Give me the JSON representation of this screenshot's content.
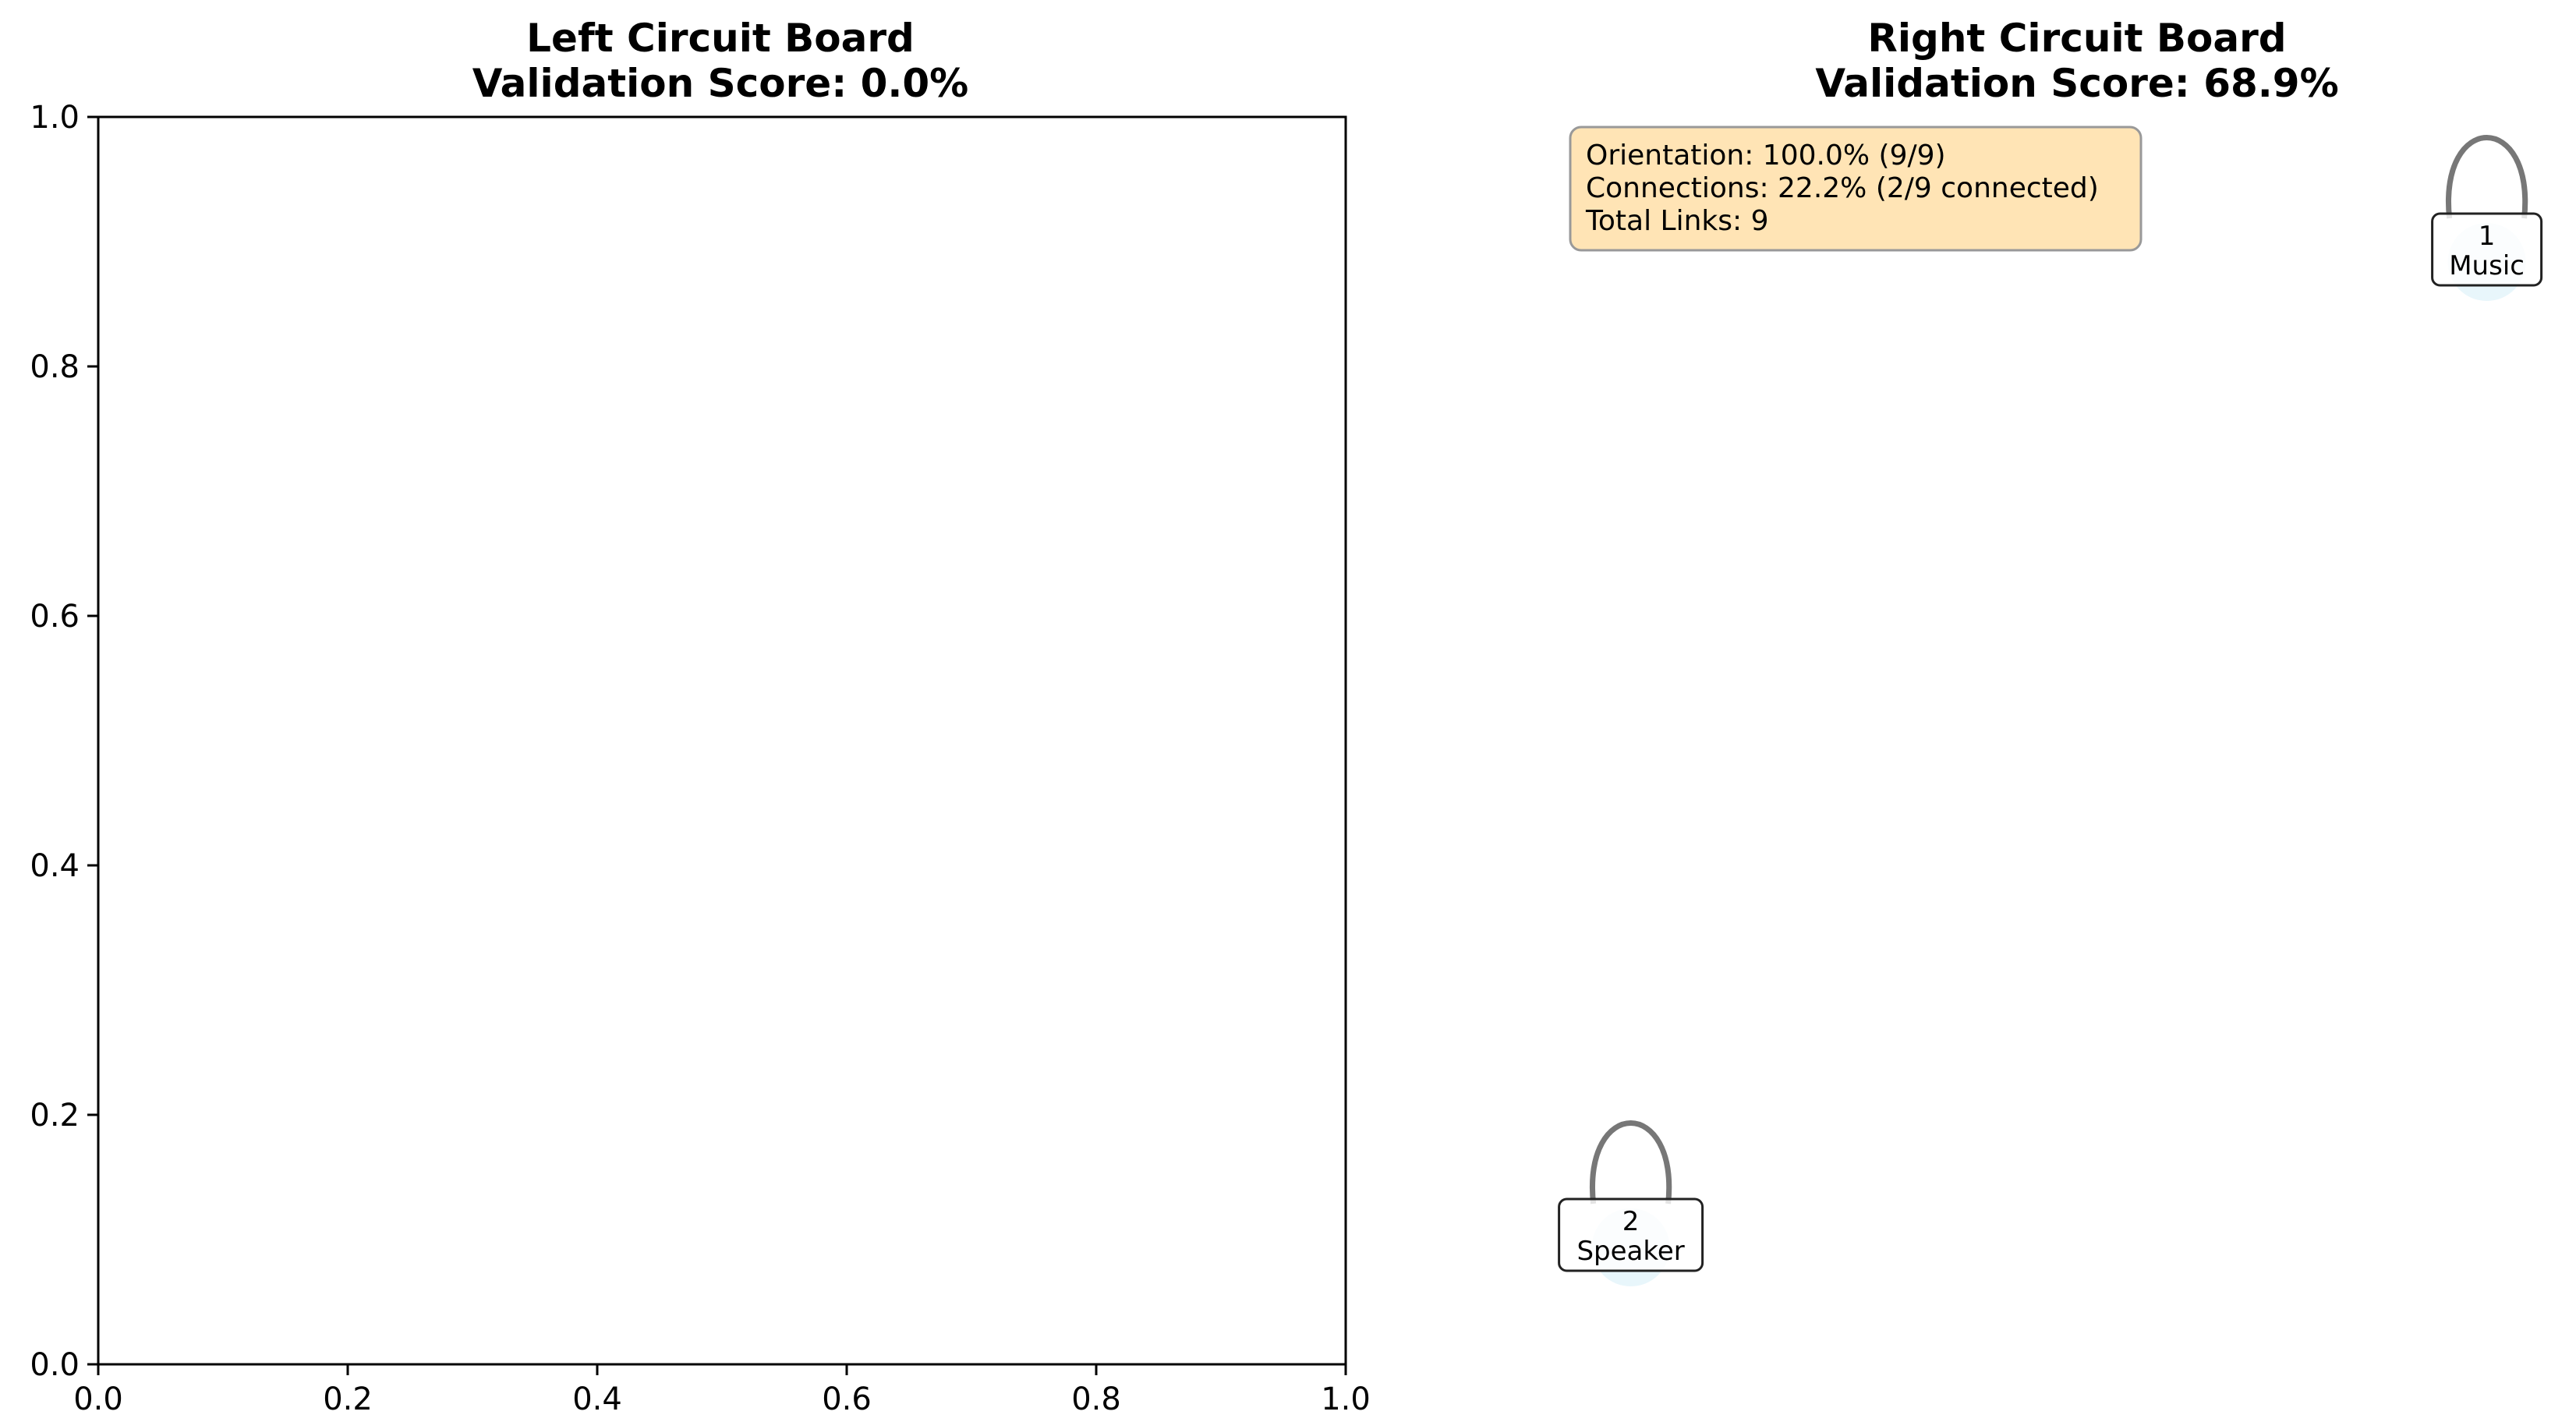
{
  "chart_data": [
    {
      "type": "scatter",
      "title_line1": "Left Circuit Board",
      "title_line2": "Validation Score: 0.0%",
      "xlim": [
        0.0,
        1.0
      ],
      "ylim": [
        0.0,
        1.0
      ],
      "x_ticks": [
        "0.0",
        "0.2",
        "0.4",
        "0.6",
        "0.8",
        "1.0"
      ],
      "y_ticks": [
        "0.0",
        "0.2",
        "0.4",
        "0.6",
        "0.8",
        "1.0"
      ],
      "axes_visible": true,
      "nodes": []
    },
    {
      "type": "scatter",
      "title_line1": "Right Circuit Board",
      "title_line2": "Validation Score: 68.9%",
      "xlim": [
        0.0,
        1.0
      ],
      "ylim": [
        0.0,
        1.0
      ],
      "axes_visible": false,
      "info_box": {
        "lines": [
          "Orientation: 100.0% (9/9)",
          "Connections: 22.2% (2/9 connected)",
          "Total Links: 9"
        ],
        "placement": "top-left",
        "background": "#ffe4b5",
        "border": "#999999"
      },
      "nodes": [
        {
          "id": "1",
          "label": "Music",
          "x": 0.98,
          "y": 0.88
        },
        {
          "id": "2",
          "label": "Speaker",
          "x": 0.08,
          "y": 0.09
        }
      ],
      "colors": {
        "node_fill": "#e8f6fb",
        "loop_stroke": "#777777",
        "box_stroke": "#222222"
      }
    }
  ]
}
